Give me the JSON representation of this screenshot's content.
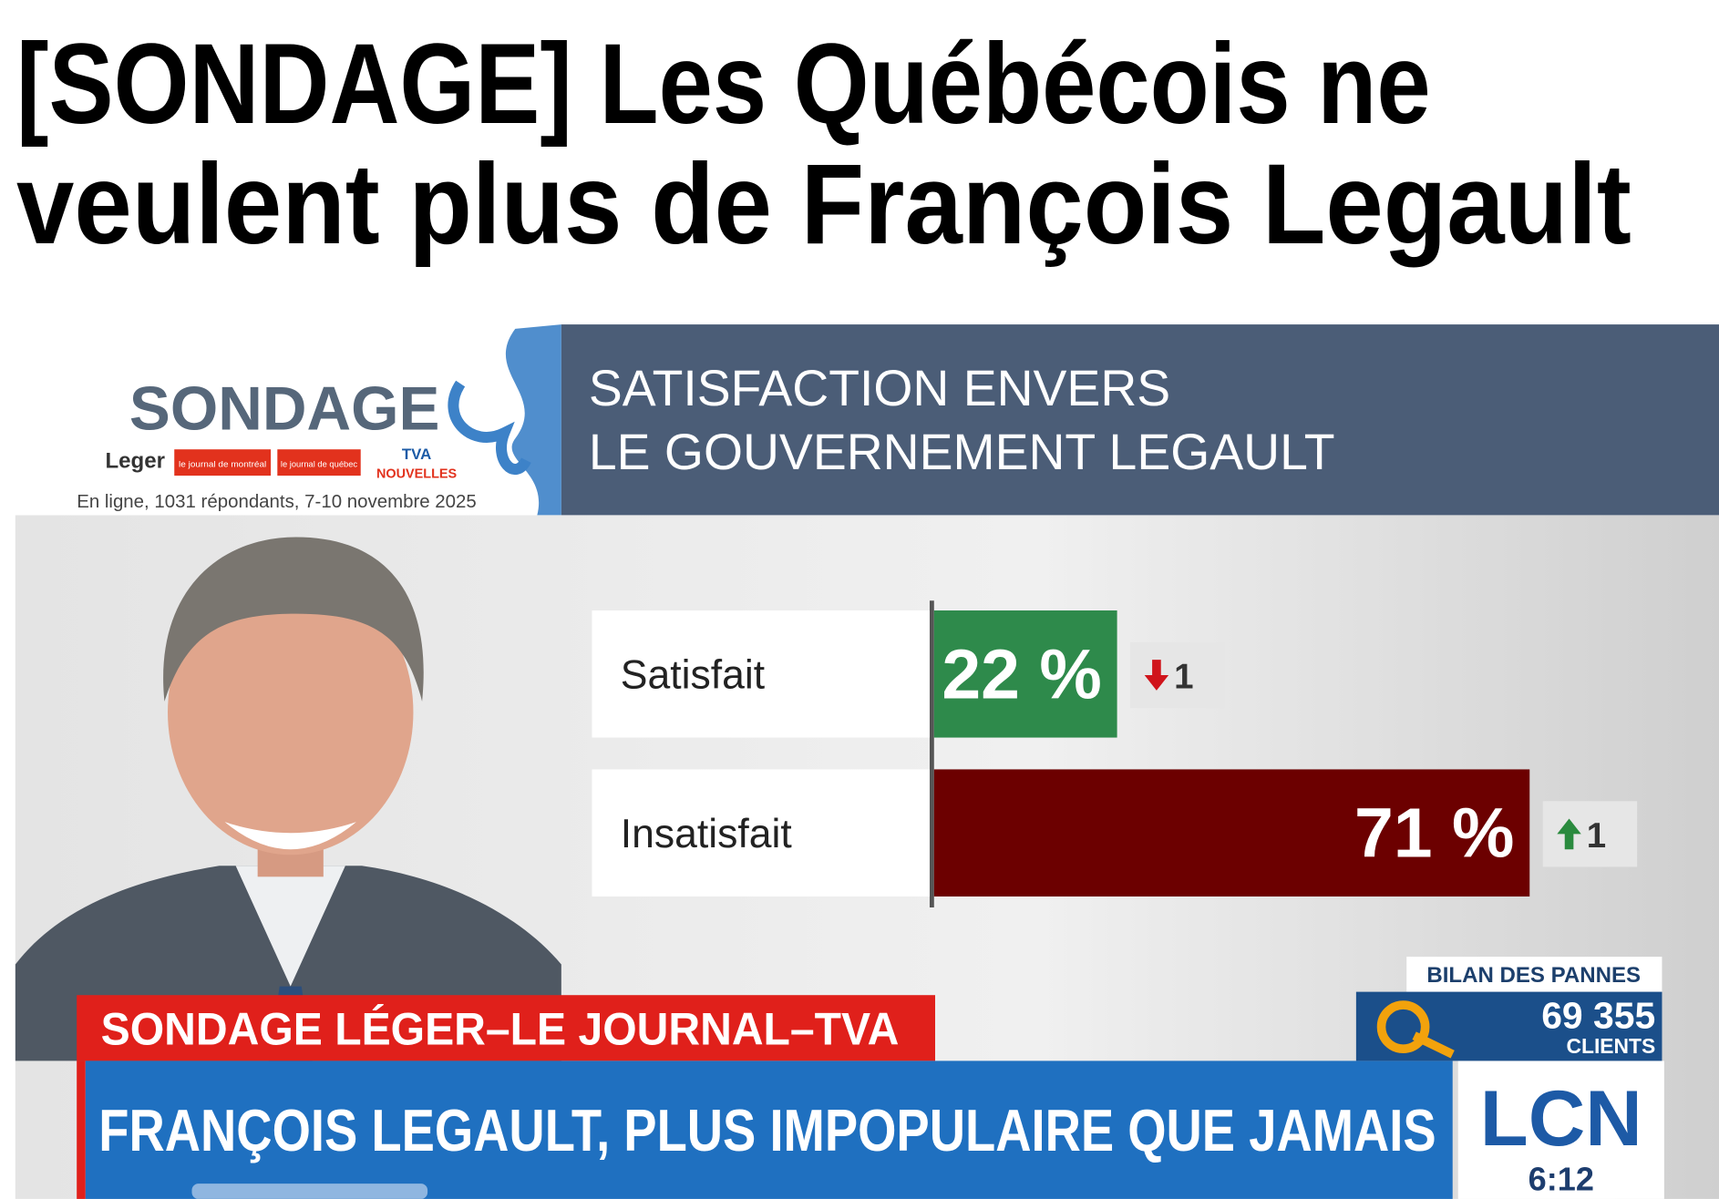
{
  "headline": {
    "lines": [
      "[SONDAGE] Les Québécois ne",
      "veulent plus de François Legault"
    ]
  },
  "poll_panel": {
    "title": "SONDAGE",
    "brands": [
      "Leger",
      "le journal de montréal",
      "le journal de québec",
      "TVA",
      "NOUVELLES"
    ],
    "note": "En ligne, 1031 répondants, 7-10 novembre 2025"
  },
  "chart_data": {
    "type": "bar",
    "orientation": "horizontal",
    "title": [
      "SATISFACTION ENVERS",
      "LE GOUVERNEMENT LEGAULT"
    ],
    "categories": [
      "Satisfait",
      "Insatisfait"
    ],
    "values": [
      22,
      71
    ],
    "value_labels": [
      "22 %",
      "71 %"
    ],
    "colors": [
      "#2e8a4b",
      "#6c0000"
    ],
    "changes": [
      -1,
      1
    ],
    "change_labels": [
      "1",
      "1"
    ]
  },
  "ticker": {
    "banner": "SONDAGE LÉGER–LE JOURNAL–TVA",
    "headline": "FRANÇOIS LEGAULT, PLUS IMPOPULAIRE QUE JAMAIS",
    "outages": {
      "title": "BILAN DES PANNES",
      "count": "69 355",
      "unit": "CLIENTS"
    },
    "channel": "LCN",
    "time": "6:12"
  }
}
